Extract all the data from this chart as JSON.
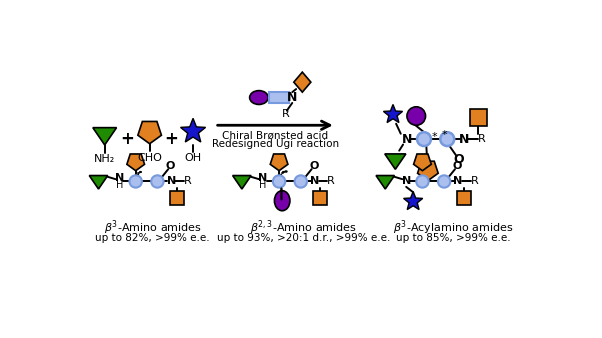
{
  "colors": {
    "green": "#1E8B00",
    "orange": "#E08020",
    "blue": "#1515CC",
    "purple": "#7700AA",
    "lb": "#7799DD",
    "lb_face": "#AABFEE",
    "black": "#000000",
    "white": "#FFFFFF"
  },
  "arrow_text1": "Chiral Brønsted acid",
  "arrow_text2": "Redesigned Ugi reaction",
  "label1_1": "$\\beta^3$-Amino amides",
  "label1_2": "up to 82%, >99% e.e.",
  "label2_1": "$\\beta^{2,3}$-Amino amides",
  "label2_2": "up to 93%, >20:1 d.r., >99% e.e.",
  "label3_1": "$\\beta^3$-Acylamino amides",
  "label3_2": "up to 85%, >99% e.e.",
  "bg": "#FFFFFF"
}
